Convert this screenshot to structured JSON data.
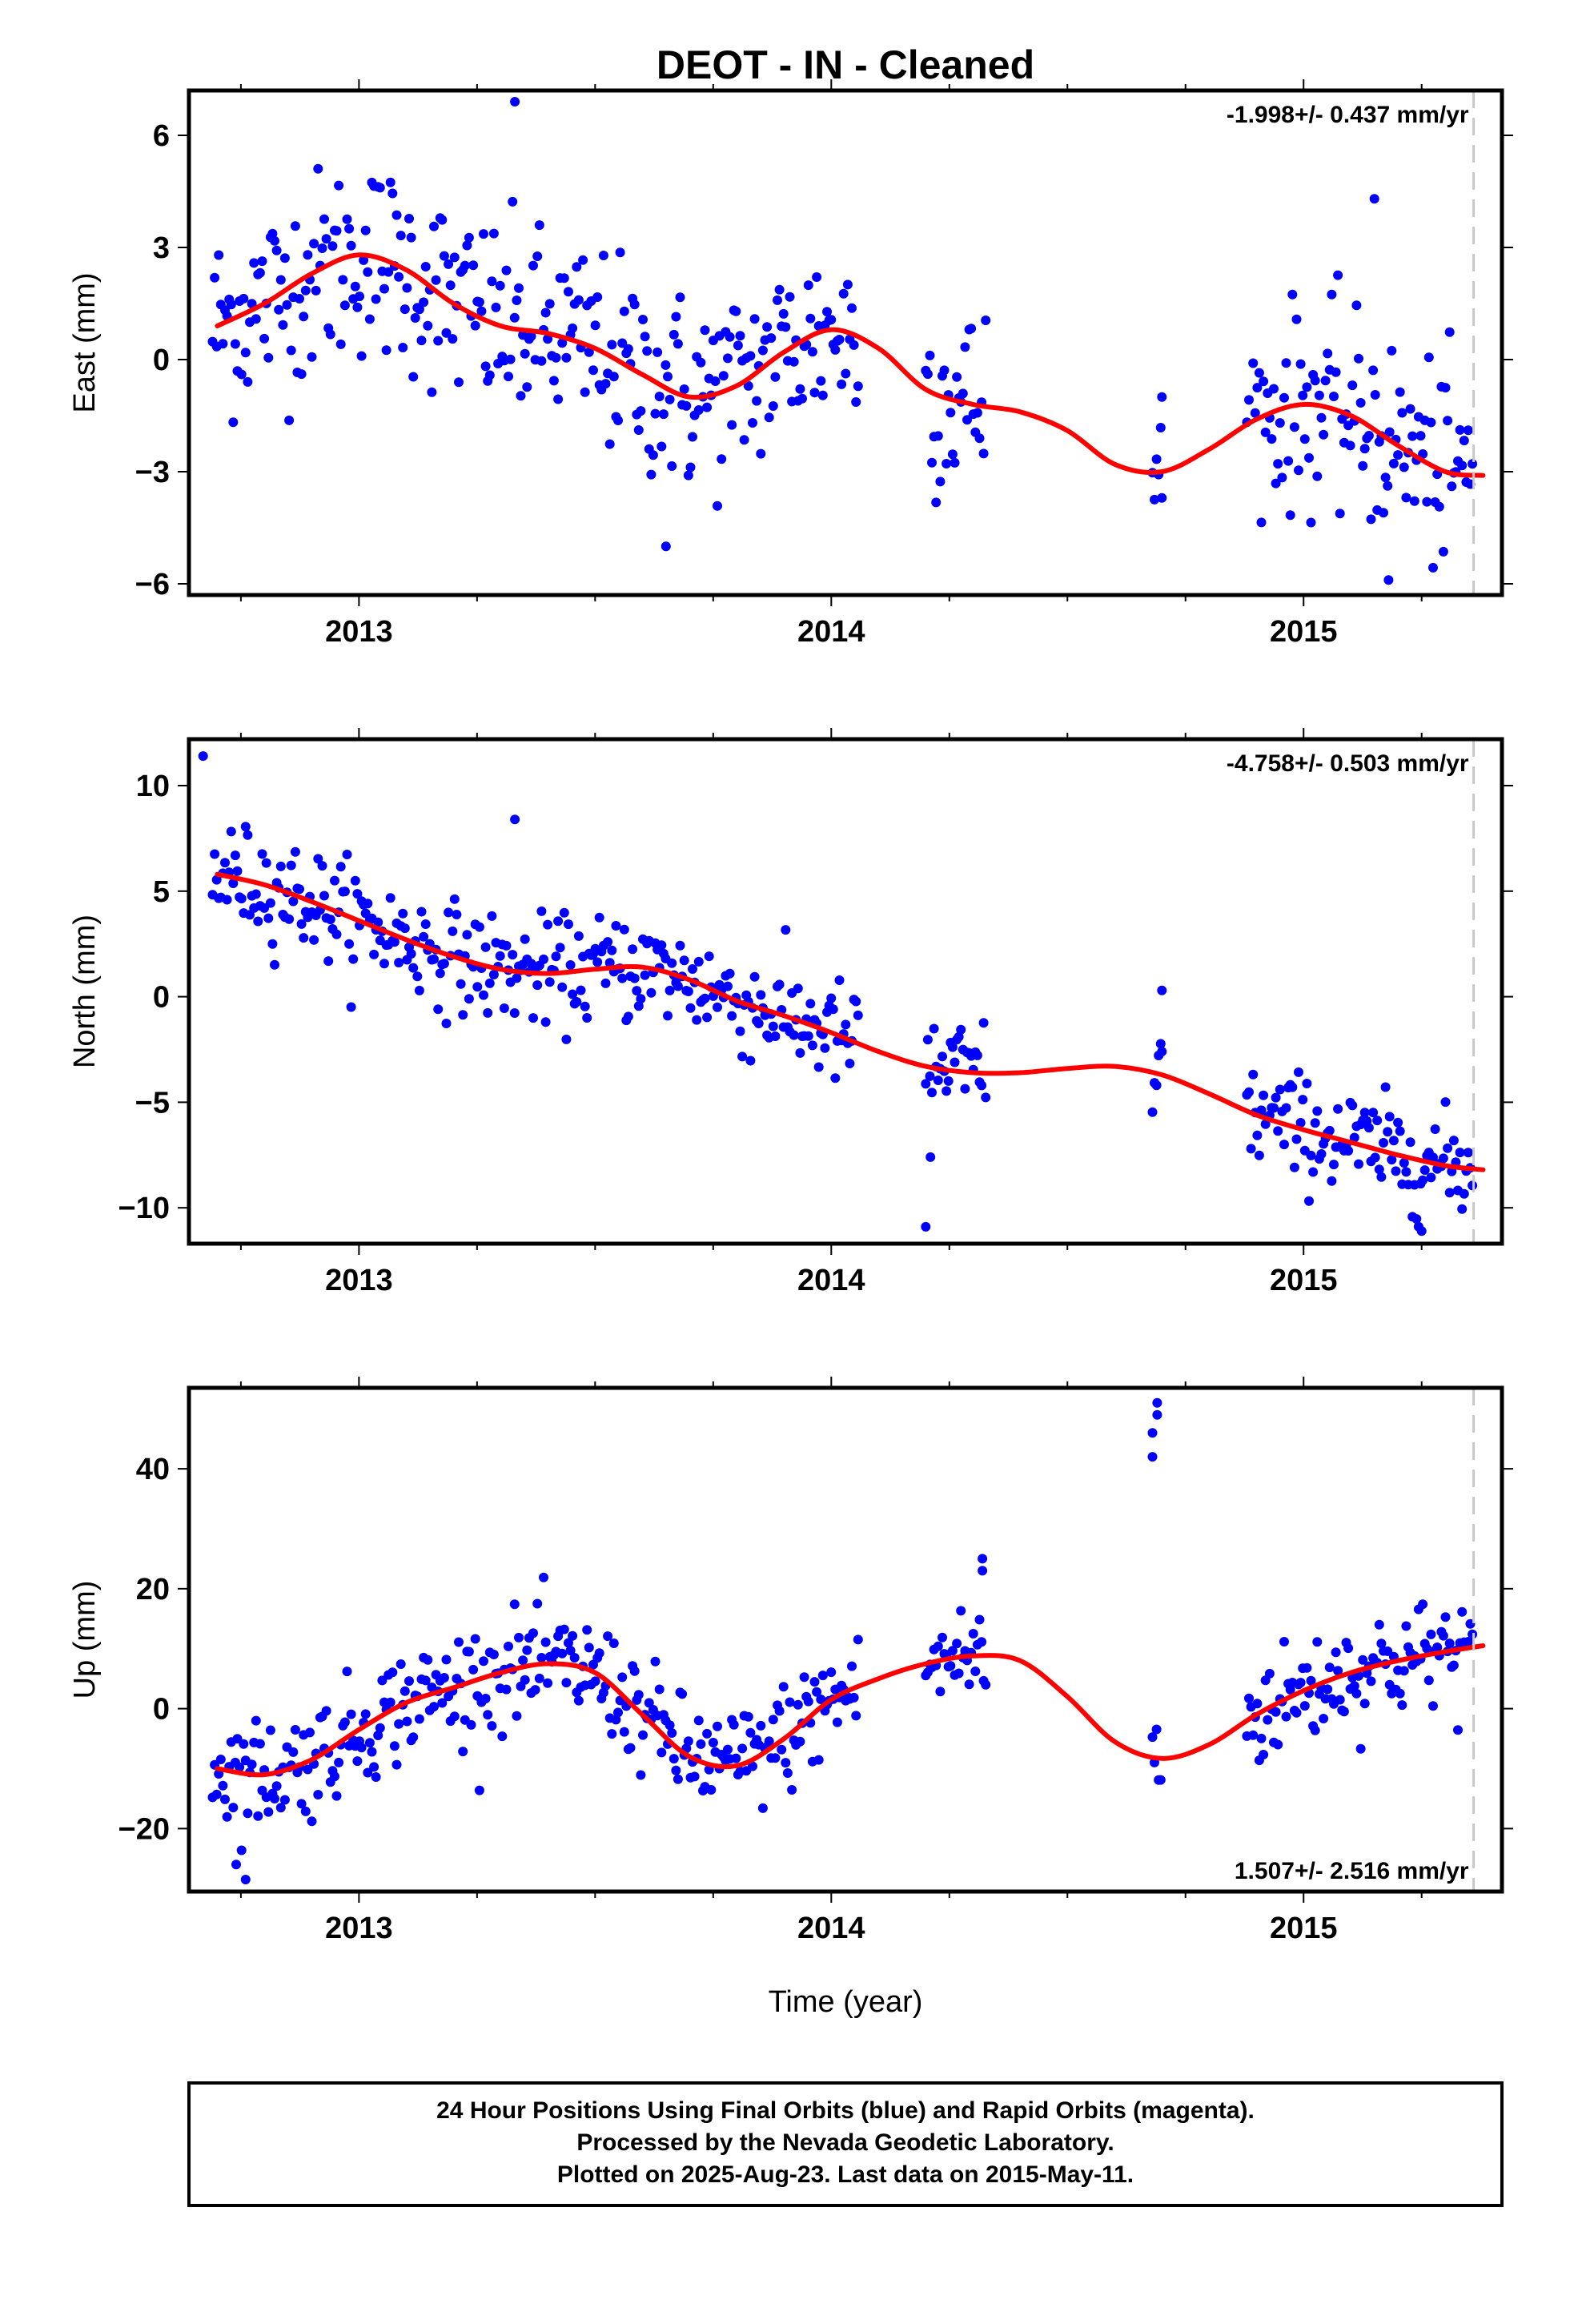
{
  "title": "DEOT  - IN - Cleaned",
  "xlabel": "Time (year)",
  "footer": {
    "line1": "24 Hour Positions Using Final Orbits (blue) and Rapid Orbits (magenta).",
    "line2": "Processed by the Nevada Geodetic Laboratory.",
    "line3": "Plotted on 2025-Aug-23. Last data on 2015-May-11."
  },
  "colors": {
    "points": "#0000ff",
    "fit": "#ff0000",
    "last_data_line": "#c8c8c8"
  },
  "chart_data": [
    {
      "type": "scatter",
      "name": "east",
      "ylabel": "East (mm)",
      "rate_text": "-1.998+/- 0.437 mm/yr",
      "xlim": [
        2012.64,
        2015.42
      ],
      "ylim": [
        -6.3,
        7.2
      ],
      "yticks": [
        -6,
        -3,
        0,
        3,
        6
      ],
      "ytick_labels": [
        "−6",
        "−3",
        "0",
        "3",
        "6"
      ],
      "xticks": [
        2013,
        2014,
        2015
      ],
      "last_data": 2015.36,
      "fit": {
        "x": [
          2012.7,
          2012.8,
          2012.9,
          2013.0,
          2013.1,
          2013.2,
          2013.3,
          2013.4,
          2013.5,
          2013.6,
          2013.7,
          2013.8,
          2013.9,
          2014.0,
          2014.1,
          2014.2,
          2014.3,
          2014.4,
          2014.5,
          2014.6,
          2014.7,
          2014.8,
          2014.9,
          2015.0,
          2015.1,
          2015.2,
          2015.3,
          2015.38
        ],
        "y": [
          0.9,
          1.5,
          2.3,
          2.8,
          2.4,
          1.5,
          0.9,
          0.7,
          0.3,
          -0.4,
          -1.0,
          -0.7,
          0.2,
          0.8,
          0.3,
          -0.8,
          -1.2,
          -1.4,
          -1.9,
          -2.8,
          -3.0,
          -2.4,
          -1.6,
          -1.2,
          -1.5,
          -2.3,
          -3.0,
          -3.1
        ]
      },
      "outliers": [
        [
          2013.33,
          6.9
        ],
        [
          2013.65,
          -5.0
        ],
        [
          2015.15,
          4.3
        ],
        [
          2015.18,
          -5.9
        ],
        [
          2014.7,
          -3.7
        ],
        [
          2014.7,
          -1.0
        ]
      ]
    },
    {
      "type": "scatter",
      "name": "north",
      "ylabel": "North (mm)",
      "rate_text": "-4.758+/- 0.503 mm/yr",
      "xlim": [
        2012.64,
        2015.42
      ],
      "ylim": [
        -11.7,
        12.2
      ],
      "yticks": [
        -10,
        -5,
        0,
        5,
        10
      ],
      "ytick_labels": [
        "−10",
        "−5",
        "0",
        "5",
        "10"
      ],
      "xticks": [
        2013,
        2014,
        2015
      ],
      "last_data": 2015.36,
      "fit": {
        "x": [
          2012.7,
          2012.8,
          2012.9,
          2013.0,
          2013.1,
          2013.2,
          2013.3,
          2013.4,
          2013.5,
          2013.6,
          2013.7,
          2013.8,
          2013.9,
          2014.0,
          2014.1,
          2014.2,
          2014.3,
          2014.4,
          2014.5,
          2014.6,
          2014.7,
          2014.8,
          2014.9,
          2015.0,
          2015.1,
          2015.2,
          2015.3,
          2015.38
        ],
        "y": [
          5.8,
          5.3,
          4.5,
          3.6,
          2.7,
          1.9,
          1.3,
          1.1,
          1.3,
          1.4,
          0.8,
          -0.2,
          -0.9,
          -1.7,
          -2.6,
          -3.3,
          -3.6,
          -3.6,
          -3.4,
          -3.3,
          -3.7,
          -4.6,
          -5.6,
          -6.3,
          -6.9,
          -7.5,
          -8.0,
          -8.2
        ]
      },
      "outliers": [
        [
          2012.67,
          11.4
        ],
        [
          2013.33,
          8.4
        ],
        [
          2014.2,
          -10.9
        ],
        [
          2014.21,
          -7.6
        ],
        [
          2014.7,
          0.3
        ],
        [
          2014.7,
          -2.6
        ],
        [
          2015.25,
          -11.1
        ]
      ]
    },
    {
      "type": "scatter",
      "name": "up",
      "ylabel": "Up (mm)",
      "rate_text": "1.507+/- 2.516 mm/yr",
      "xlim": [
        2012.64,
        2015.42
      ],
      "ylim": [
        -30.5,
        53.5
      ],
      "yticks": [
        -20,
        0,
        20,
        40
      ],
      "ytick_labels": [
        "−20",
        "0",
        "20",
        "40"
      ],
      "xticks": [
        2013,
        2014,
        2015
      ],
      "last_data": 2015.36,
      "fit": {
        "x": [
          2012.7,
          2012.8,
          2012.9,
          2013.0,
          2013.1,
          2013.2,
          2013.3,
          2013.4,
          2013.5,
          2013.6,
          2013.7,
          2013.8,
          2013.9,
          2014.0,
          2014.1,
          2014.2,
          2014.3,
          2014.4,
          2014.5,
          2014.6,
          2014.7,
          2014.8,
          2014.9,
          2015.0,
          2015.1,
          2015.2,
          2015.3,
          2015.38
        ],
        "y": [
          -10.0,
          -11.0,
          -8.5,
          -3.5,
          1.0,
          3.5,
          6.0,
          7.5,
          6.0,
          -1.0,
          -8.0,
          -9.5,
          -5.0,
          1.5,
          5.0,
          7.5,
          8.8,
          8.0,
          2.0,
          -5.5,
          -8.3,
          -6.0,
          -1.0,
          3.0,
          6.0,
          8.0,
          9.5,
          10.5
        ]
      },
      "outliers": [
        [
          2014.69,
          51.0
        ],
        [
          2014.69,
          49.0
        ],
        [
          2014.68,
          46.0
        ],
        [
          2014.68,
          42.0
        ],
        [
          2012.74,
          -26.0
        ],
        [
          2012.76,
          -28.5
        ],
        [
          2014.32,
          25.0
        ],
        [
          2014.32,
          23.0
        ]
      ]
    }
  ]
}
